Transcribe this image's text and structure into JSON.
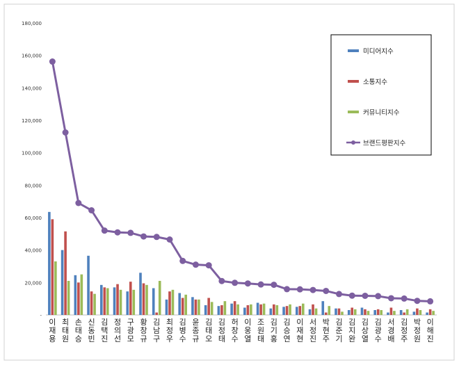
{
  "chart_data": {
    "type": "bar",
    "categories": [
      "이재용",
      "최태원",
      "손태승",
      "신동빈",
      "김택진",
      "정의선",
      "구광모",
      "황창규",
      "김남구",
      "최정우",
      "김병수",
      "윤종규",
      "김태오",
      "김정태",
      "허창수",
      "이웅열",
      "조원태",
      "김기홍",
      "김승연",
      "이재현",
      "서정진",
      "박현주",
      "김준기",
      "김지완",
      "김상열",
      "김광수",
      "서경배",
      "김정주",
      "박정원",
      "이해진"
    ],
    "series": [
      {
        "name": "미디어지수",
        "kind": "bar",
        "color": "#4f81bd",
        "values": [
          63500,
          40000,
          24500,
          36500,
          18500,
          17000,
          14500,
          26000,
          16500,
          9500,
          13500,
          11000,
          6000,
          5500,
          7000,
          4500,
          7500,
          4000,
          5000,
          5000,
          3500,
          8500,
          4000,
          3000,
          4500,
          3000,
          1500,
          3000,
          2000,
          1500
        ]
      },
      {
        "name": "소통지수",
        "kind": "bar",
        "color": "#c0504d",
        "values": [
          59000,
          51500,
          20000,
          14500,
          17000,
          19000,
          20500,
          19500,
          1500,
          14500,
          10500,
          9500,
          10500,
          6000,
          8500,
          6000,
          6500,
          6500,
          5500,
          5500,
          6500,
          1500,
          4000,
          4500,
          3500,
          3500,
          4500,
          1500,
          4000,
          3500
        ]
      },
      {
        "name": "커뮤니티지수",
        "kind": "bar",
        "color": "#9bbb59",
        "values": [
          33000,
          21000,
          25000,
          13000,
          16500,
          15500,
          15500,
          18500,
          21000,
          15500,
          12500,
          9500,
          8000,
          8500,
          6500,
          6500,
          7000,
          6000,
          6500,
          7000,
          4000,
          5500,
          2000,
          3500,
          2500,
          3000,
          2500,
          3500,
          3000,
          2500
        ]
      },
      {
        "name": "브랜드평판지수",
        "kind": "line",
        "color": "#7d5fa0",
        "values": [
          156200,
          112500,
          69000,
          64500,
          52000,
          50900,
          50600,
          48400,
          48100,
          46500,
          33300,
          31000,
          30600,
          20900,
          19800,
          19400,
          18800,
          18600,
          15900,
          15800,
          15400,
          14800,
          12900,
          11900,
          11800,
          11600,
          10300,
          10100,
          8700,
          8400
        ]
      }
    ],
    "yticks": [
      "-",
      "20,000",
      "40,000",
      "60,000",
      "80,000",
      "100,000",
      "120,000",
      "140,000",
      "160,000",
      "180,000"
    ],
    "ylim": [
      0,
      180000
    ],
    "grid": false,
    "legend_position": "top-right"
  }
}
